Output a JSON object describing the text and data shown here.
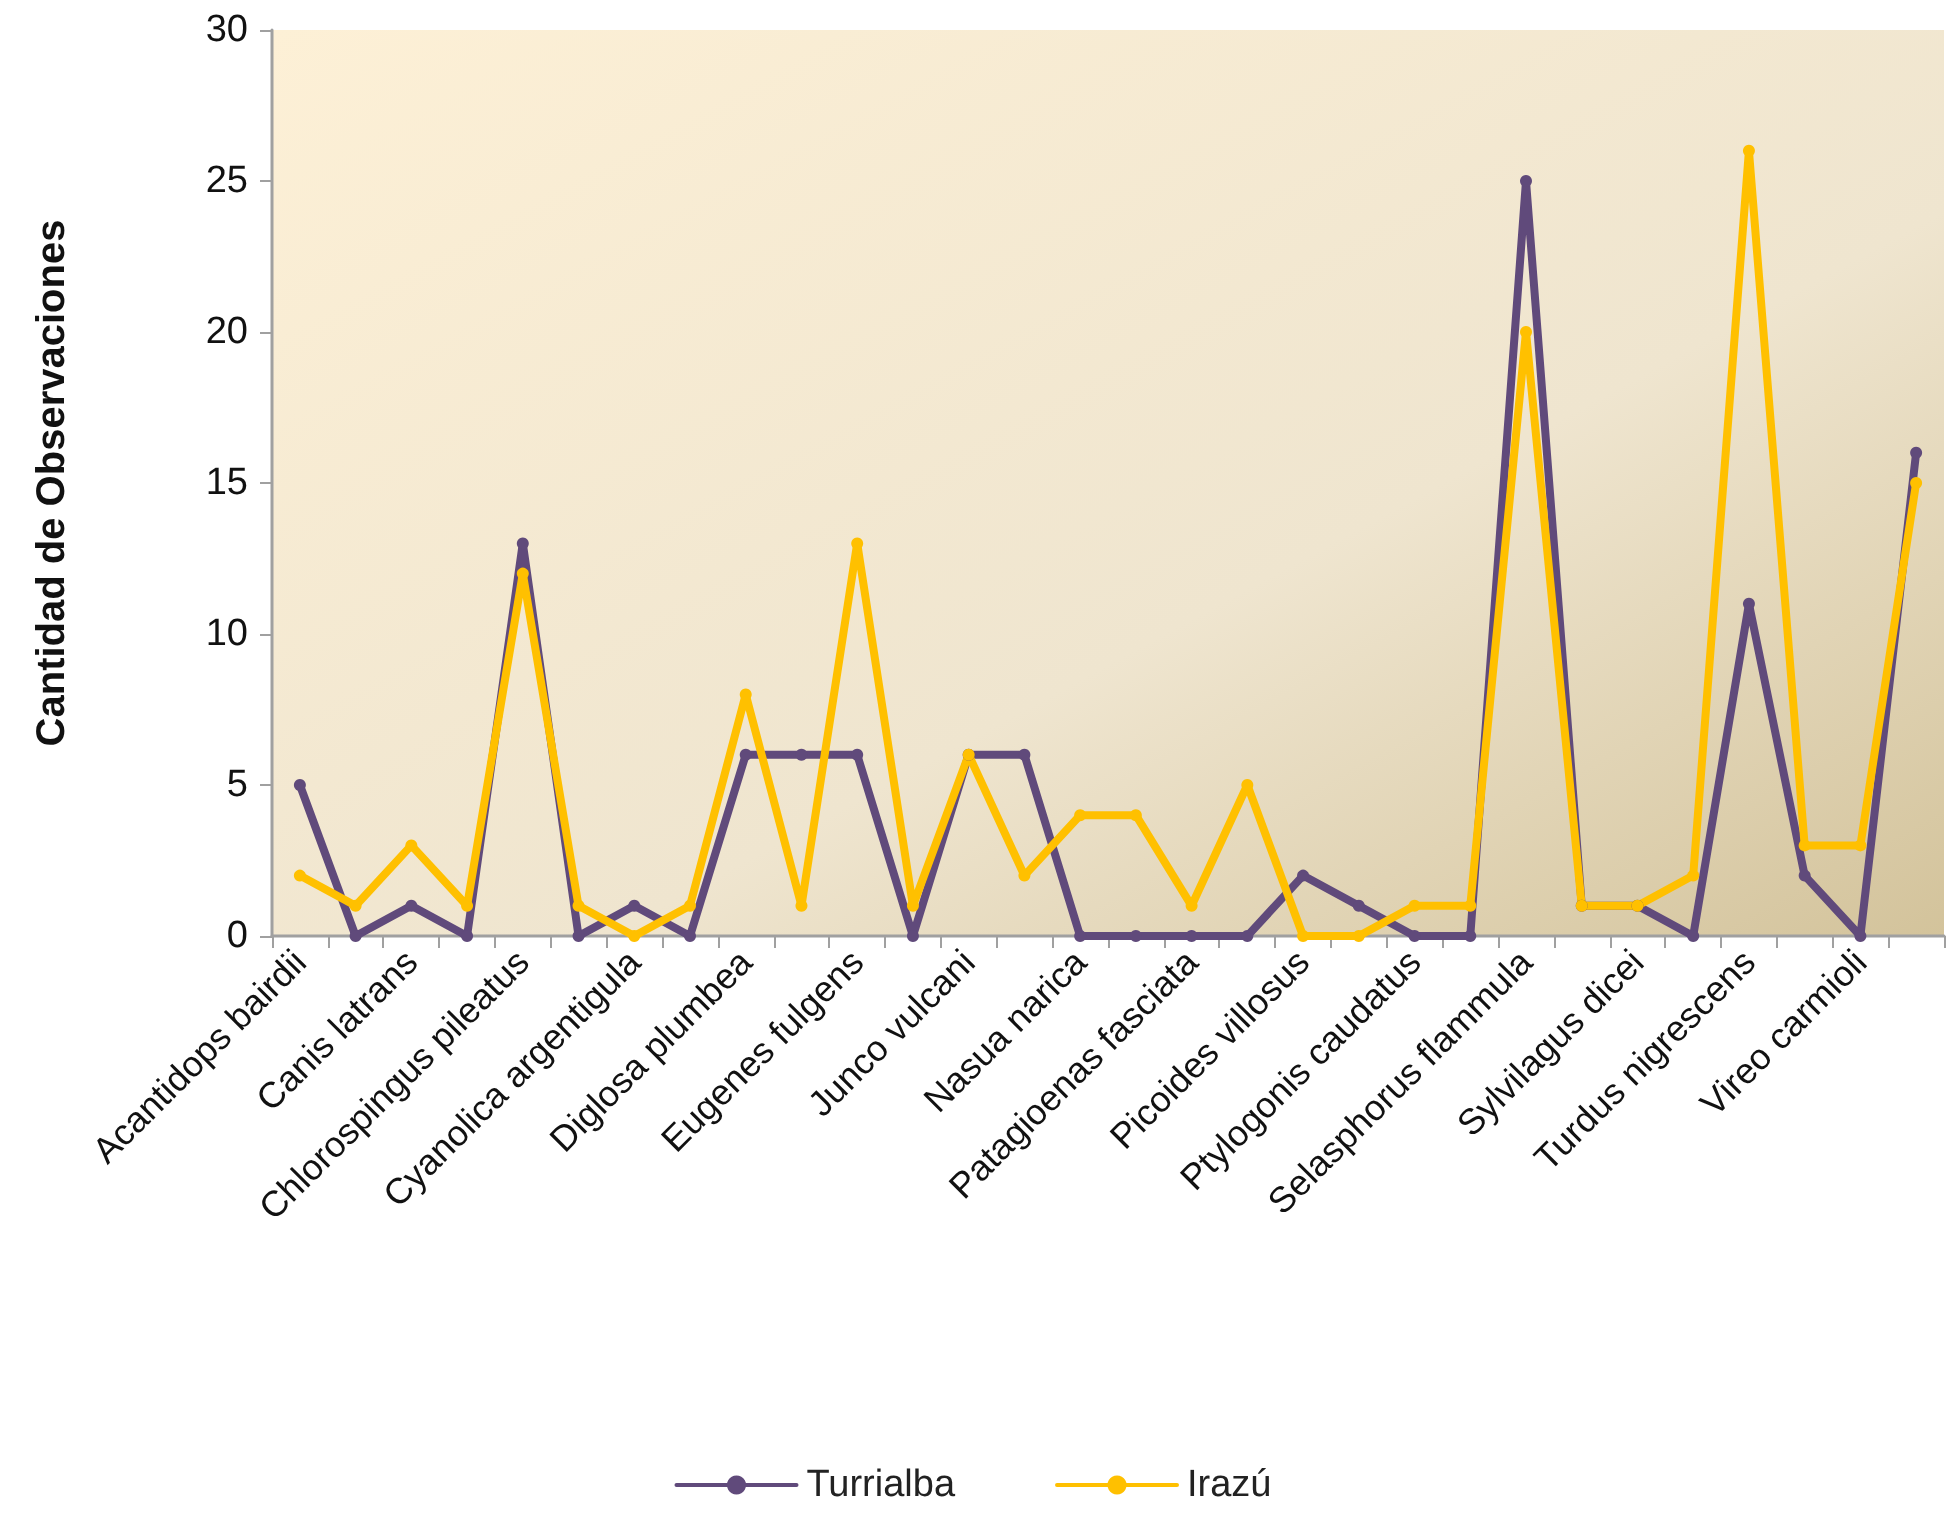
{
  "chart_data": {
    "type": "line",
    "ylabel": "Cantidad de Observaciones",
    "categories": [
      "Acantidops bairdii",
      null,
      "Canis latrans",
      null,
      "Chlorospingus pileatus",
      null,
      "Cyanolica argentigula",
      null,
      "Diglosa plumbea",
      null,
      "Eugenes fulgens",
      null,
      "Junco vulcani",
      null,
      "Nasua narica",
      null,
      "Patagioenas fasciata",
      null,
      "Picoides villosus",
      null,
      "Ptylogonis caudatus",
      null,
      "Selasphorus flammula",
      null,
      "Sylvilagus dicei",
      null,
      "Turdus nigrescens",
      null,
      "Vireo carmioli",
      null
    ],
    "series": [
      {
        "name": "Turrialba",
        "color": "#604a7b",
        "values": [
          5,
          0,
          1,
          0,
          13,
          0,
          1,
          0,
          6,
          6,
          6,
          0,
          6,
          6,
          0,
          0,
          0,
          0,
          2,
          1,
          0,
          0,
          25,
          1,
          1,
          0,
          11,
          2,
          0,
          16
        ]
      },
      {
        "name": "Irazú",
        "color": "#ffc000",
        "values": [
          2,
          1,
          3,
          1,
          12,
          1,
          0,
          1,
          8,
          1,
          13,
          1,
          6,
          2,
          4,
          4,
          1,
          5,
          0,
          0,
          1,
          1,
          20,
          1,
          1,
          2,
          26,
          3,
          3,
          15
        ]
      }
    ],
    "ylim": [
      0,
      30
    ],
    "yticks": [
      0,
      5,
      10,
      15,
      20,
      25,
      30
    ],
    "grid": false,
    "legend": "bottom",
    "marker": "circle",
    "line_style": "solid"
  }
}
